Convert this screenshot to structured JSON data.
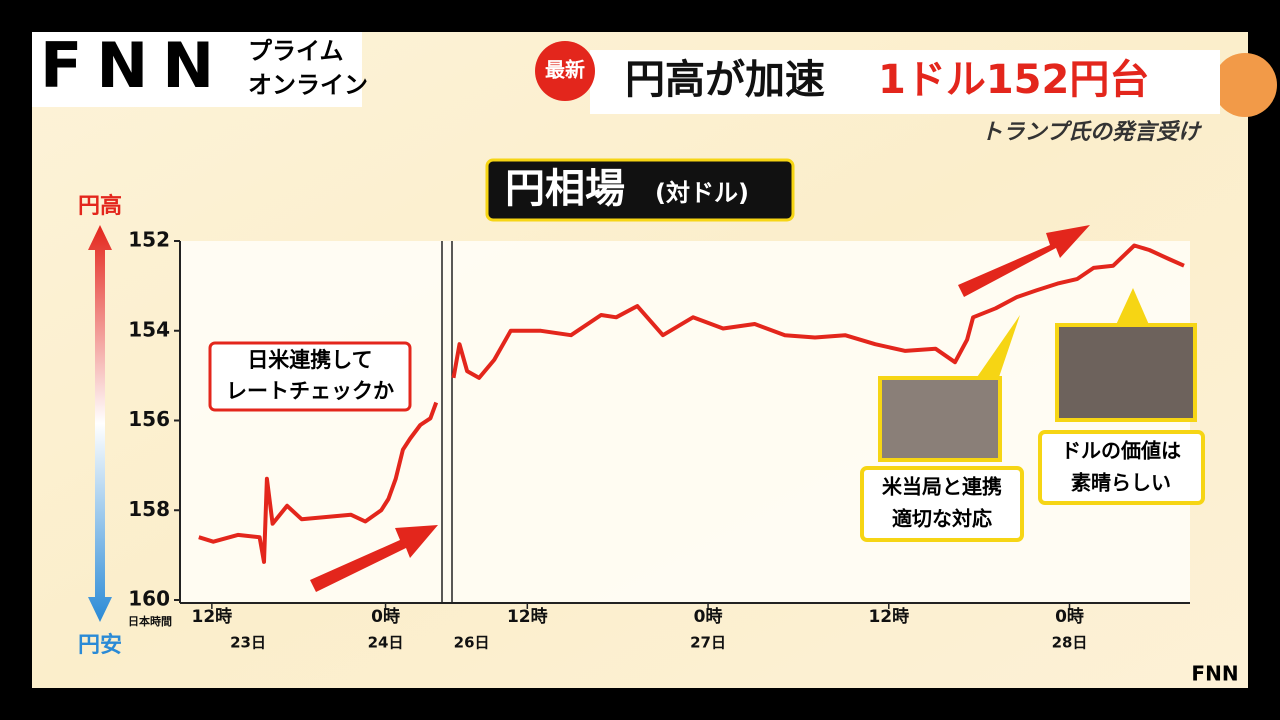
{
  "header": {
    "logo": "FNN",
    "brand_lines": [
      "プライム",
      "オンライン"
    ],
    "badge": "最新",
    "headline_main": "円高が加速",
    "headline_accent": "1ドル152円台",
    "subhead": "トランプ氏の発言受け"
  },
  "chart_title": "円相場",
  "chart_subtitle": "(対ドル)",
  "axis_top": "円高",
  "axis_bottom": "円安",
  "time_zone": "日本時間",
  "annotations": [
    [
      "日米連携して",
      "レートチェックか"
    ],
    [
      "米当局と連携",
      "適切な対応"
    ],
    [
      "ドルの価値は",
      "素晴らしい"
    ]
  ],
  "footer_logo": "FNN",
  "chart_data": [
    {
      "type": "line",
      "color": "#e3261c",
      "x": [
        11.1,
        12.1,
        13.8,
        15.3,
        15.6,
        15.8,
        16.2,
        17.2,
        18.2,
        19.9,
        21.6,
        22.6,
        23.7,
        24.2,
        24.7,
        25.2,
        25.7,
        26.4,
        27.1,
        27.5
      ],
      "values": [
        158.6,
        158.7,
        158.55,
        158.6,
        159.15,
        157.3,
        158.3,
        157.9,
        158.2,
        158.15,
        158.1,
        158.25,
        158.0,
        157.75,
        157.3,
        156.65,
        156.4,
        156.1,
        155.95,
        155.6
      ],
      "xlim": [
        9.8,
        27.9
      ],
      "xticks": [
        {
          "value": 12,
          "label": "12時"
        },
        {
          "value": 24,
          "label": "0時"
        }
      ],
      "date_labels": [
        {
          "value": 14.5,
          "label": "23日"
        },
        {
          "value": 24,
          "label": "24日"
        }
      ],
      "ylim": [
        160,
        152
      ],
      "yticks": [
        152,
        154,
        156,
        158,
        160
      ]
    },
    {
      "type": "line",
      "color": "#e3261c",
      "x": [
        7.1,
        7.5,
        8.0,
        8.8,
        9.8,
        10.9,
        12.9,
        14.9,
        16.9,
        17.9,
        19.3,
        21.0,
        23.0,
        25.0,
        27.1,
        29.1,
        31.1,
        33.1,
        35.1,
        37.1,
        39.1,
        40.4,
        41.2,
        41.6,
        43.1,
        44.5,
        45.8,
        47.2,
        48.5,
        49.6,
        50.9,
        52.3,
        53.3,
        54.6,
        55.6
      ],
      "values": [
        155.05,
        154.3,
        154.9,
        155.05,
        154.65,
        154.0,
        154.0,
        154.1,
        153.65,
        153.7,
        153.45,
        154.1,
        153.7,
        153.95,
        153.85,
        154.1,
        154.15,
        154.1,
        154.3,
        154.45,
        154.4,
        154.7,
        154.2,
        153.7,
        153.5,
        153.25,
        153.1,
        152.95,
        152.85,
        152.6,
        152.55,
        152.1,
        152.2,
        152.4,
        152.55
      ],
      "xlim": [
        7,
        56
      ],
      "xticks": [
        {
          "value": 12,
          "label": "12時"
        },
        {
          "value": 24,
          "label": "0時"
        },
        {
          "value": 36,
          "label": "12時"
        },
        {
          "value": 48,
          "label": "0時"
        }
      ],
      "date_labels": [
        {
          "value": 8.3,
          "label": "26日"
        },
        {
          "value": 24,
          "label": "27日"
        },
        {
          "value": 48,
          "label": "28日"
        }
      ],
      "ylim": [
        160,
        152
      ]
    }
  ]
}
